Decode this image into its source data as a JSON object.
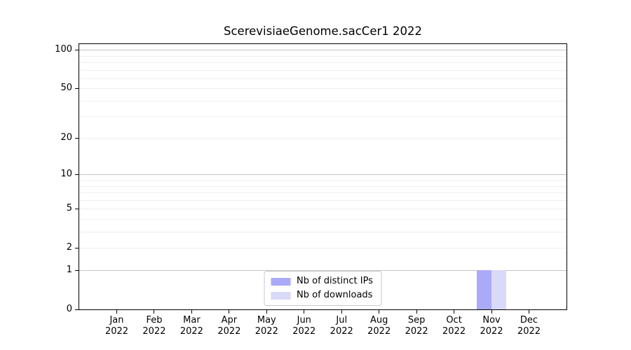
{
  "title": "ScerevisiaeGenome.sacCer1 2022",
  "legend": {
    "items": [
      {
        "label": "Nb of distinct IPs",
        "color": "#aaaaf8"
      },
      {
        "label": "Nb of downloads",
        "color": "#d9d9fa"
      }
    ]
  },
  "chart_data": {
    "type": "bar",
    "title": "ScerevisiaeGenome.sacCer1 2022",
    "categories": [
      "Jan 2022",
      "Feb 2022",
      "Mar 2022",
      "Apr 2022",
      "May 2022",
      "Jun 2022",
      "Jul 2022",
      "Aug 2022",
      "Sep 2022",
      "Oct 2022",
      "Nov 2022",
      "Dec 2022"
    ],
    "series": [
      {
        "name": "Nb of distinct IPs",
        "color": "#aaaaf8",
        "values": [
          0,
          0,
          0,
          0,
          0,
          0,
          0,
          0,
          0,
          0,
          1,
          0
        ]
      },
      {
        "name": "Nb of downloads",
        "color": "#d9d9fa",
        "values": [
          0,
          0,
          0,
          0,
          0,
          0,
          0,
          0,
          0,
          0,
          1,
          0
        ]
      }
    ],
    "xlabel": "",
    "ylabel": "",
    "yscale": "log10(1+x)",
    "ylim": [
      0,
      111
    ],
    "yticks": [
      0,
      1,
      2,
      5,
      10,
      20,
      50,
      100
    ],
    "major_gridlines": [
      1,
      10,
      100
    ],
    "minor_gridlines": [
      2,
      3,
      4,
      5,
      6,
      7,
      8,
      9,
      20,
      30,
      40,
      50,
      60,
      70,
      80,
      90
    ],
    "grid": true,
    "legend_position": "lower center",
    "bar_group_width": 0.8,
    "colors": {
      "major_grid": "#c6c6c6",
      "minor_grid": "#eeeeee",
      "spine": "#000000",
      "background": "#ffffff"
    }
  }
}
